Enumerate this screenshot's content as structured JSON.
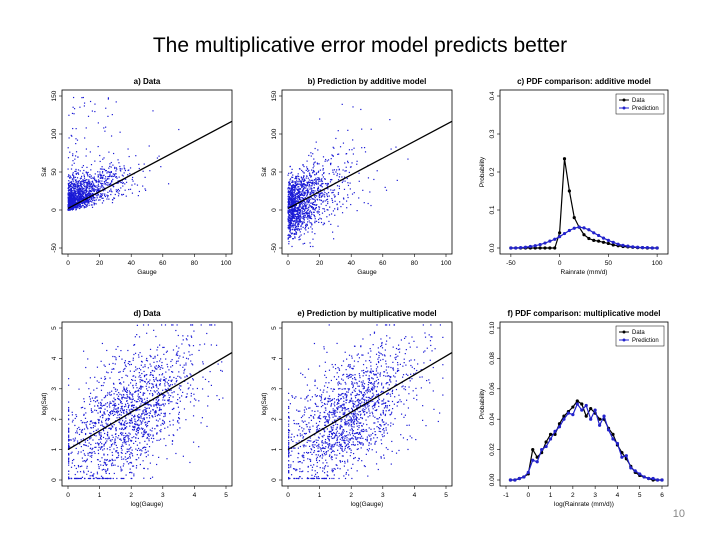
{
  "slide": {
    "title": "The multiplicative error model predicts better",
    "page_number": "10"
  },
  "colors": {
    "points": "#1a1ad6",
    "data_line": "#000000",
    "prediction_line": "#2222cc",
    "fit_line": "#000000"
  },
  "chart_data": [
    {
      "type": "scatter",
      "title": "a) Data",
      "xlabel": "Gauge",
      "ylabel": "Sat",
      "xlim": [
        0,
        100
      ],
      "ylim": [
        -50,
        150
      ],
      "xticks": [
        0,
        20,
        40,
        60,
        80,
        100
      ],
      "yticks": [
        -50,
        0,
        50,
        100,
        150
      ],
      "fit_line": {
        "x": [
          0,
          105
        ],
        "y": [
          2,
          118
        ]
      },
      "point_cloud": {
        "description_only": true,
        "n": 1400,
        "x_dist": "gamma",
        "y_dist": "noisy positive"
      }
    },
    {
      "type": "scatter",
      "title": "b) Prediction by additive model",
      "xlabel": "Gauge",
      "ylabel": "Sat",
      "xlim": [
        0,
        100
      ],
      "ylim": [
        -50,
        150
      ],
      "xticks": [
        0,
        20,
        40,
        60,
        80,
        100
      ],
      "yticks": [
        -50,
        0,
        50,
        100,
        150
      ],
      "fit_line": {
        "x": [
          0,
          105
        ],
        "y": [
          2,
          118
        ]
      },
      "point_cloud": {
        "n": 1400
      }
    },
    {
      "type": "line",
      "title": "c) PDF comparison: additive model",
      "xlabel": "Rainrate (mm/d)",
      "ylabel": "Probability",
      "xlim": [
        -55,
        105
      ],
      "ylim": [
        0,
        0.4
      ],
      "xticks": [
        -50,
        0,
        50,
        100
      ],
      "yticks": [
        0.0,
        0.1,
        0.2,
        0.3,
        0.4
      ],
      "legend": [
        "Data",
        "Prediction"
      ],
      "legend_position": "top-right",
      "series": [
        {
          "name": "Data",
          "x": [
            -50,
            -45,
            -40,
            -35,
            -30,
            -25,
            -20,
            -15,
            -10,
            -5,
            0,
            5,
            10,
            15,
            20,
            25,
            30,
            35,
            40,
            45,
            50,
            55,
            60,
            65,
            70,
            75,
            80,
            85,
            90,
            95,
            100
          ],
          "y": [
            0,
            0,
            0,
            0,
            0,
            0,
            0,
            0,
            0,
            0,
            0.04,
            0.235,
            0.15,
            0.08,
            0.055,
            0.035,
            0.025,
            0.02,
            0.018,
            0.015,
            0.012,
            0.008,
            0.006,
            0.004,
            0.003,
            0.002,
            0.001,
            0.001,
            0,
            0,
            0
          ]
        },
        {
          "name": "Prediction",
          "x": [
            -50,
            -45,
            -40,
            -35,
            -30,
            -25,
            -20,
            -15,
            -10,
            -5,
            0,
            5,
            10,
            15,
            20,
            25,
            30,
            35,
            40,
            45,
            50,
            55,
            60,
            65,
            70,
            75,
            80,
            85,
            90,
            95,
            100
          ],
          "y": [
            0,
            0,
            0.001,
            0.002,
            0.004,
            0.006,
            0.009,
            0.013,
            0.018,
            0.023,
            0.03,
            0.038,
            0.046,
            0.052,
            0.055,
            0.053,
            0.048,
            0.04,
            0.033,
            0.026,
            0.02,
            0.015,
            0.01,
            0.007,
            0.005,
            0.003,
            0.002,
            0.001,
            0.001,
            0,
            0
          ]
        }
      ]
    },
    {
      "type": "scatter",
      "title": "d) Data",
      "xlabel": "log(Gauge)",
      "ylabel": "log(Sat)",
      "xlim": [
        0,
        5
      ],
      "ylim": [
        0,
        5
      ],
      "xticks": [
        0,
        1,
        2,
        3,
        4,
        5
      ],
      "yticks": [
        0,
        1,
        2,
        3,
        4,
        5
      ],
      "fit_line": {
        "x": [
          0,
          5.2
        ],
        "y": [
          1.0,
          4.2
        ]
      },
      "point_cloud": {
        "n": 1600
      }
    },
    {
      "type": "scatter",
      "title": "e) Prediction by multiplicative model",
      "xlabel": "log(Gauge)",
      "ylabel": "log(Sat)",
      "xlim": [
        0,
        5
      ],
      "ylim": [
        0,
        5
      ],
      "xticks": [
        0,
        1,
        2,
        3,
        4,
        5
      ],
      "yticks": [
        0,
        1,
        2,
        3,
        4,
        5
      ],
      "fit_line": {
        "x": [
          0,
          5.2
        ],
        "y": [
          1.0,
          4.2
        ]
      },
      "point_cloud": {
        "n": 1600
      }
    },
    {
      "type": "line",
      "title": "f) PDF comparison: multiplicative model",
      "xlabel": "log(Rainrate (mm/d))",
      "ylabel": "Probability",
      "xlim": [
        -1,
        6
      ],
      "ylim": [
        0,
        0.1
      ],
      "xticks": [
        -1,
        0,
        1,
        2,
        3,
        4,
        5,
        6
      ],
      "yticks": [
        0.0,
        0.02,
        0.04,
        0.06,
        0.08,
        0.1
      ],
      "legend": [
        "Data",
        "Prediction"
      ],
      "legend_position": "top-right",
      "series": [
        {
          "name": "Data",
          "x": [
            -0.8,
            -0.6,
            -0.4,
            -0.2,
            0,
            0.2,
            0.4,
            0.6,
            0.8,
            1.0,
            1.2,
            1.4,
            1.6,
            1.8,
            2.0,
            2.2,
            2.4,
            2.6,
            2.8,
            3.0,
            3.2,
            3.4,
            3.6,
            3.8,
            4.0,
            4.2,
            4.4,
            4.6,
            4.8,
            5.0,
            5.2,
            5.4,
            5.6,
            5.8,
            6.0
          ],
          "y": [
            0,
            0,
            0.001,
            0.002,
            0.004,
            0.02,
            0.015,
            0.018,
            0.025,
            0.03,
            0.03,
            0.037,
            0.042,
            0.045,
            0.048,
            0.052,
            0.05,
            0.042,
            0.047,
            0.044,
            0.04,
            0.04,
            0.034,
            0.03,
            0.023,
            0.018,
            0.014,
            0.009,
            0.005,
            0.003,
            0.002,
            0.001,
            0,
            0,
            0
          ]
        },
        {
          "name": "Prediction",
          "x": [
            -0.8,
            -0.6,
            -0.4,
            -0.2,
            0,
            0.2,
            0.4,
            0.6,
            0.8,
            1.0,
            1.2,
            1.4,
            1.6,
            1.8,
            2.0,
            2.2,
            2.4,
            2.6,
            2.8,
            3.0,
            3.2,
            3.4,
            3.6,
            3.8,
            4.0,
            4.2,
            4.4,
            4.6,
            4.8,
            5.0,
            5.2,
            5.4,
            5.6,
            5.8,
            6.0
          ],
          "y": [
            0,
            0,
            0.001,
            0.002,
            0.005,
            0.013,
            0.012,
            0.02,
            0.022,
            0.027,
            0.032,
            0.035,
            0.04,
            0.044,
            0.043,
            0.05,
            0.046,
            0.049,
            0.04,
            0.046,
            0.036,
            0.042,
            0.033,
            0.027,
            0.024,
            0.015,
            0.016,
            0.008,
            0.006,
            0.004,
            0.002,
            0.001,
            0.001,
            0,
            0
          ]
        }
      ]
    }
  ]
}
